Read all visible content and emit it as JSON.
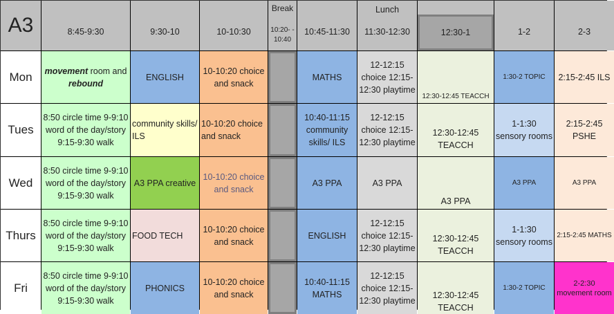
{
  "title": "A3",
  "headers": [
    {
      "time": "8:45-9:30"
    },
    {
      "time": "9:30-10"
    },
    {
      "time": "10-10:30"
    },
    {
      "label": "Break",
      "time": "10:20- - 10:40"
    },
    {
      "time": "10:45-11:30"
    },
    {
      "label": "Lunch",
      "time": "11:30-12:30"
    },
    {
      "time": "12:30-1"
    },
    {
      "time": "1-2"
    },
    {
      "time": "2-3"
    }
  ],
  "rows": [
    {
      "day": "Mon",
      "cells": [
        "",
        "ENGLISH",
        "10-10:20 choice and snack",
        "",
        "MATHS",
        "12-12:15 choice 12:15-12:30 playtime",
        "12:30-12:45 TEACCH",
        "1:30-2 TOPIC",
        "2:15-2:45 ILS"
      ],
      "first": {
        "b1": "movement",
        "t1": " room and ",
        "b2": "rebound"
      }
    },
    {
      "day": "Tues",
      "cells": [
        "8:50 circle time 9-9:10 word of the day/story 9:15-9:30 walk",
        "community skills/ ILS",
        "10-10:20 choice and snack",
        "",
        "10:40-11:15 community skills/ ILS",
        "12-12:15 choice 12:15-12:30 playtime",
        "12:30-12:45 TEACCH",
        "1-1:30 sensory rooms",
        "2:15-2:45 PSHE"
      ]
    },
    {
      "day": "Wed",
      "cells": [
        "8:50 circle time 9-9:10 word of the day/story 9:15-9:30 walk",
        "A3 PPA creative",
        "10-10:20 choice and snack",
        "",
        "A3 PPA",
        "A3 PPA",
        "A3 PPA",
        "A3 PPA",
        "A3 PPA"
      ]
    },
    {
      "day": "Thurs",
      "cells": [
        "8:50 circle time 9-9:10 word of the day/story 9:15-9:30 walk",
        "FOOD TECH",
        "10-10:20 choice and snack",
        "",
        "ENGLISH",
        "12-12:15 choice 12:15-12:30 playtime",
        "12:30-12:45 TEACCH",
        "1-1:30 sensory rooms",
        "2:15-2:45 MATHS"
      ]
    },
    {
      "day": "Fri",
      "cells": [
        "8:50 circle time 9-9:10 word of the day/story 9:15-9:30 walk",
        "PHONICS",
        "10-10:20 choice and snack",
        "",
        "10:40-11:15 MATHS",
        "12-12:15 choice 12:15-12:30 playtime",
        "12:30-12:45 TEACCH",
        "1:30-2 TOPIC",
        "2-2:30 movement room"
      ]
    }
  ],
  "colors": {
    "header": "#c0c0c0",
    "english_maths": "#8eb4e3",
    "morning": "#ccffcc",
    "snack": "#fac090",
    "break": "#a6a6a6",
    "lunch": "#d9d9d9",
    "teacch": "#ebf1de",
    "movement_fri": "#ff33cc"
  }
}
